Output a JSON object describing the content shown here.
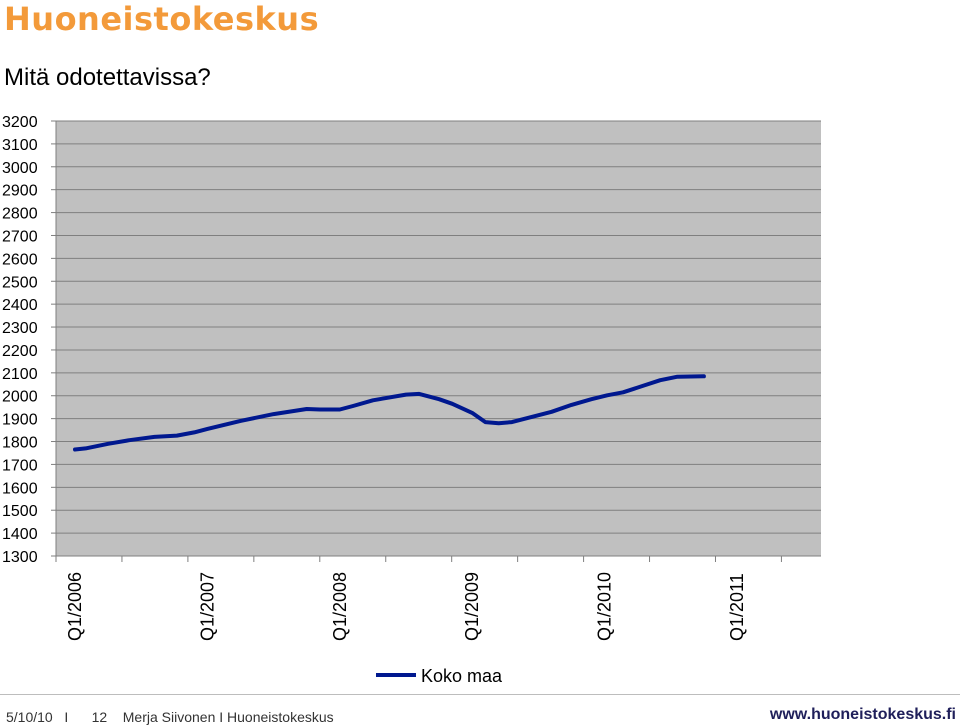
{
  "header": {
    "brand": "Huoneistokeskus",
    "subtitle": "Mitä odotettavissa?"
  },
  "footer": {
    "date": "5/10/10",
    "separator1": "I",
    "page": "12",
    "author": "Merja Siivonen I Huoneistokeskus",
    "url": "www.huoneistokeskus.fi"
  },
  "colors": {
    "brand": "#f39a3a",
    "series": "#00188f",
    "plot_bg": "#c0c0c0",
    "grid": "#7f7f7f"
  },
  "chart_data": {
    "type": "line",
    "ylim": [
      1300,
      3200
    ],
    "yticks": [
      1300,
      1400,
      1500,
      1600,
      1700,
      1800,
      1900,
      2000,
      2100,
      2200,
      2300,
      2400,
      2500,
      2600,
      2700,
      2800,
      2900,
      3000,
      3100,
      3200
    ],
    "xticks": [
      "Q1/2006",
      "Q1/2007",
      "Q1/2008",
      "Q1/2009",
      "Q1/2010",
      "Q1/2011"
    ],
    "grid": true,
    "legend": "bottom",
    "series": [
      {
        "name": "Koko maa",
        "color": "#00188f",
        "x": [
          0,
          0.08,
          0.25,
          0.41,
          0.6,
          0.77,
          0.9,
          1.0,
          1.25,
          1.5,
          1.75,
          1.85,
          2.0,
          2.1,
          2.25,
          2.5,
          2.6,
          2.75,
          2.85,
          3.0,
          3.1,
          3.2,
          3.3,
          3.6,
          3.75,
          3.9,
          4.02,
          4.14,
          4.3,
          4.42,
          4.55,
          4.75
        ],
        "values": [
          1765,
          1770,
          1790,
          1806,
          1820,
          1826,
          1840,
          1855,
          1890,
          1920,
          1942,
          1940,
          1940,
          1955,
          1980,
          2005,
          2008,
          1985,
          1965,
          1925,
          1885,
          1880,
          1885,
          1930,
          1960,
          1985,
          2002,
          2015,
          2045,
          2068,
          2083,
          2085
        ]
      }
    ]
  }
}
